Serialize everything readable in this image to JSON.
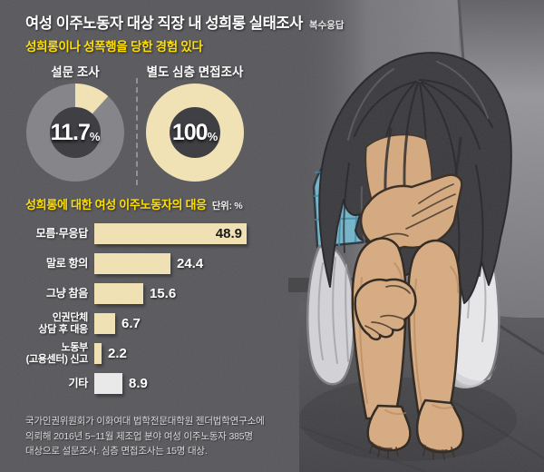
{
  "header": {
    "title": "여성 이주노동자 대상 직장 내 성희롱 실태조사",
    "note": "복수응답"
  },
  "experience_heading": "성희롱이나 성폭행을 당한 경험 있다",
  "chart_data": [
    {
      "type": "pie",
      "title": "설문 조사",
      "value": 11.7,
      "display": "11.7",
      "unit": "%",
      "segment_color": "#f0e2b4",
      "remainder_color": "#85858a",
      "hole_color": "#3f3f44"
    },
    {
      "type": "pie",
      "title": "별도 심층 면접조사",
      "value": 100,
      "display": "100",
      "unit": "%",
      "segment_color": "#f0e2b4",
      "remainder_color": "#85858a",
      "hole_color": "#3f3f44"
    },
    {
      "type": "bar",
      "title": "성희롱에 대한 여성 이주노동자의 대응",
      "unit_label": "단위: %",
      "categories": [
        "모름·무응답",
        "말로 항의",
        "그냥 참음",
        "인권단체\n상담 후 대응",
        "노동부\n(고용센터) 신고",
        "기타"
      ],
      "values": [
        48.9,
        24.4,
        15.6,
        6.7,
        2.2,
        8.9
      ],
      "xlim": [
        0,
        50
      ],
      "bar_colors": [
        "#efe1b3",
        "#efe1b3",
        "#efe1b3",
        "#efe1b3",
        "#efe1b3",
        "#e9e9ea"
      ],
      "value_inside": [
        true,
        false,
        false,
        false,
        false,
        false
      ]
    }
  ],
  "footer": {
    "lines": [
      "국가인권위원회가 이화여대 법학전문대학원 젠더법학연구소에",
      "의뢰해 2016년 5~11월 제조업 분야 여성 이주노동자 385명",
      "대상으로 설문조사. 심층 면접조사는 15명 대상."
    ]
  },
  "colors": {
    "accent_yellow": "#ffdf00",
    "cream": "#efe1b3",
    "donut_gray": "#85858a",
    "etc_bar_white": "#e9e9ea",
    "panel_bg": "#57575b"
  }
}
